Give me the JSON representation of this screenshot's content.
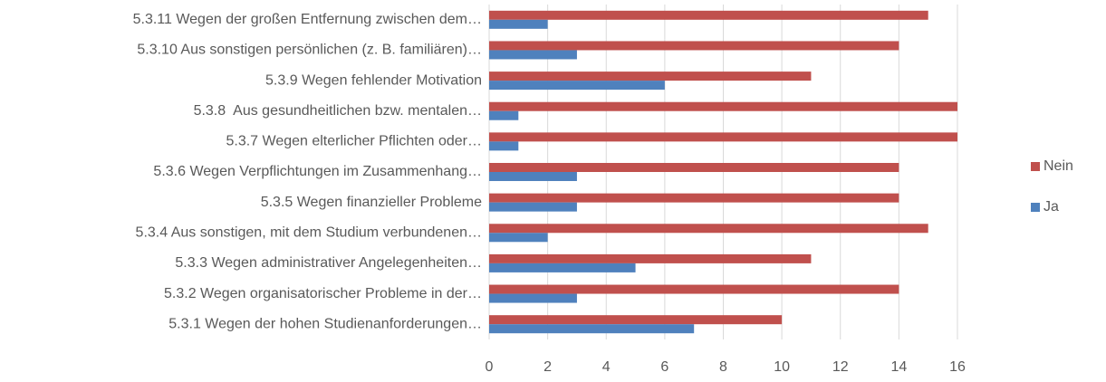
{
  "chart_data": {
    "type": "bar",
    "orientation": "horizontal",
    "categories": [
      "5.3.1 Wegen der hohen Studienanforderungen…",
      "5.3.2 Wegen organisatorischer Probleme in der…",
      "5.3.3 Wegen administrativer Angelegenheiten…",
      "5.3.4 Aus sonstigen, mit dem Studium verbundenen…",
      "5.3.5 Wegen finanzieller Probleme",
      "5.3.6 Wegen Verpflichtungen im Zusammenhang…",
      "5.3.7 Wegen elterlicher Pflichten oder…",
      "5.3.8  Aus gesundheitlichen bzw. mentalen…",
      "5.3.9 Wegen fehlender Motivation",
      "5.3.10 Aus sonstigen persönlichen (z. B. familiären)…",
      "5.3.11 Wegen der großen Entfernung zwischen dem…"
    ],
    "series": [
      {
        "name": "Nein",
        "color": "#c0504d",
        "values": [
          10,
          14,
          11,
          15,
          14,
          14,
          16,
          16,
          11,
          14,
          15
        ]
      },
      {
        "name": "Ja",
        "color": "#4f81bd",
        "values": [
          7,
          3,
          5,
          2,
          3,
          3,
          1,
          1,
          6,
          3,
          2
        ]
      }
    ],
    "xlim": [
      0,
      16
    ],
    "xticks": [
      0,
      2,
      4,
      6,
      8,
      10,
      12,
      14,
      16
    ],
    "grid": true,
    "legend": "right"
  }
}
